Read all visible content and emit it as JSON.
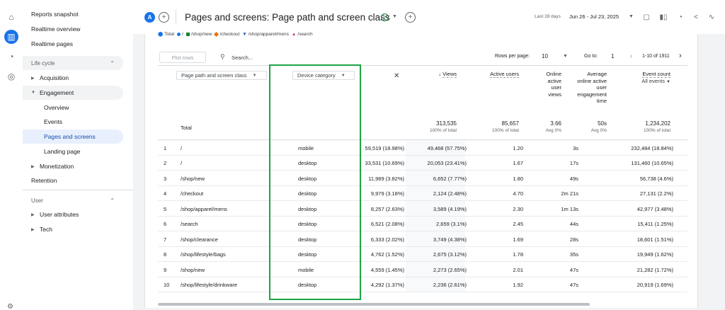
{
  "sidebar": {
    "reports_snapshot": "Reports snapshot",
    "realtime_overview": "Realtime overview",
    "realtime_pages": "Realtime pages",
    "life_cycle": "Life cycle",
    "acquisition": "Acquisition",
    "engagement": "Engagement",
    "overview": "Overview",
    "events": "Events",
    "pages_and_screens": "Pages and screens",
    "landing_page": "Landing page",
    "monetization": "Monetization",
    "retention": "Retention",
    "user": "User",
    "user_attributes": "User attributes",
    "tech": "Tech"
  },
  "header": {
    "avatar_letter": "A",
    "title": "Pages and screens: Page path and screen class",
    "date_last": "Last 28 days",
    "date_range": "Jun 26 - Jul 23, 2025"
  },
  "legend": {
    "total": "Total",
    "items": [
      "/",
      "/shop/new",
      "/checkout",
      "/shop/apparel/mens",
      "/search"
    ],
    "colors": [
      "#1a73e8",
      "#188038",
      "#e8710a",
      "#174ea6",
      "#c5318e"
    ]
  },
  "toolbar": {
    "plot_rows": "Plot rows",
    "search_placeholder": "Search...",
    "rows_per_page_label": "Rows per page:",
    "rows_per_page_value": "10",
    "goto_label": "Go to:",
    "goto_value": "1",
    "pagination_text": "1-10 of 1911"
  },
  "table": {
    "dim1": "Page path and screen class",
    "dim2": "Device category",
    "headers": {
      "views": "Views",
      "active_users": "Active users",
      "online_active_user_views": [
        "Online",
        "active",
        "user",
        "views"
      ],
      "avg_engagement": [
        "Average",
        "online active",
        "user",
        "engagement",
        "time"
      ],
      "event_count": "Event count",
      "event_count_sub": "All events"
    },
    "total_label": "Total",
    "totals": {
      "views": "313,535",
      "views_sub": "100% of total",
      "active_users": "85,657",
      "active_users_sub": "100% of total",
      "online": "3.66",
      "online_sub": "Avg 0%",
      "avg": "50s",
      "avg_sub": "Avg 0%",
      "events": "1,234,202",
      "events_sub": "100% of total"
    },
    "rows": [
      {
        "idx": "1",
        "path": "/",
        "device": "mobile",
        "views": "59,519 (18.98%)",
        "users": "49,468 (57.75%)",
        "online": "1.20",
        "avg": "3s",
        "events": "232,484 (18.84%)"
      },
      {
        "idx": "2",
        "path": "/",
        "device": "desktop",
        "views": "33,531 (10.69%)",
        "users": "20,053 (23.41%)",
        "online": "1.67",
        "avg": "17s",
        "events": "131,460 (10.65%)"
      },
      {
        "idx": "3",
        "path": "/shop/new",
        "device": "desktop",
        "views": "11,989 (3.82%)",
        "users": "6,652 (7.77%)",
        "online": "1.80",
        "avg": "49s",
        "events": "56,738 (4.6%)"
      },
      {
        "idx": "4",
        "path": "/checkout",
        "device": "desktop",
        "views": "9,979 (3.18%)",
        "users": "2,124 (2.48%)",
        "online": "4.70",
        "avg": "2m 21s",
        "events": "27,131 (2.2%)"
      },
      {
        "idx": "5",
        "path": "/shop/apparel/mens",
        "device": "desktop",
        "views": "8,257 (2.63%)",
        "users": "3,589 (4.19%)",
        "online": "2.30",
        "avg": "1m 13s",
        "events": "42,977 (3.48%)"
      },
      {
        "idx": "6",
        "path": "/search",
        "device": "desktop",
        "views": "6,521 (2.08%)",
        "users": "2,659 (3.1%)",
        "online": "2.45",
        "avg": "44s",
        "events": "15,411 (1.25%)"
      },
      {
        "idx": "7",
        "path": "/shop/clearance",
        "device": "desktop",
        "views": "6,333 (2.02%)",
        "users": "3,749 (4.38%)",
        "online": "1.69",
        "avg": "28s",
        "events": "18,601 (1.51%)"
      },
      {
        "idx": "8",
        "path": "/shop/lifestyle/bags",
        "device": "desktop",
        "views": "4,762 (1.52%)",
        "users": "2,675 (3.12%)",
        "online": "1.78",
        "avg": "35s",
        "events": "19,949 (1.62%)"
      },
      {
        "idx": "9",
        "path": "/shop/new",
        "device": "mobile",
        "views": "4,559 (1.45%)",
        "users": "2,273 (2.65%)",
        "online": "2.01",
        "avg": "47s",
        "events": "21,282 (1.72%)"
      },
      {
        "idx": "10",
        "path": "/shop/lifestyle/drinkware",
        "device": "desktop",
        "views": "4,292 (1.37%)",
        "users": "2,236 (2.61%)",
        "online": "1.92",
        "avg": "47s",
        "events": "20,919 (1.69%)"
      }
    ]
  }
}
